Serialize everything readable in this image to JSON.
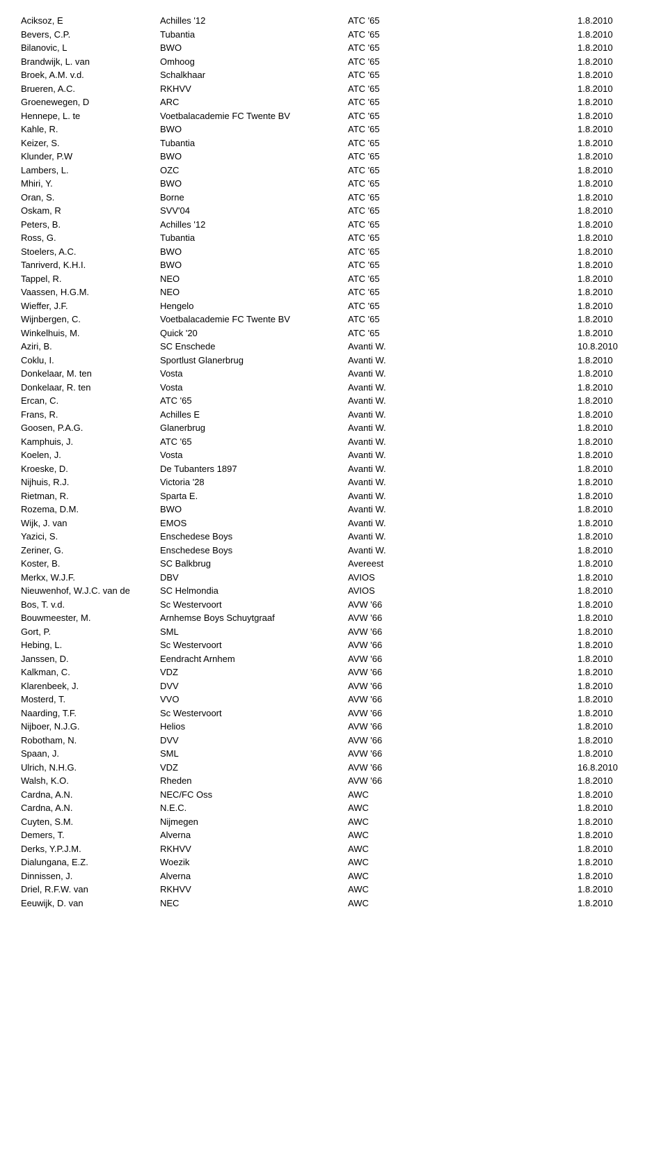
{
  "rows": [
    {
      "name": "Aciksoz, E",
      "club": "Achilles '12",
      "team": "ATC '65",
      "date": "1.8.2010"
    },
    {
      "name": "Bevers, C.P.",
      "club": "Tubantia",
      "team": "ATC '65",
      "date": "1.8.2010"
    },
    {
      "name": "Bilanovic, L",
      "club": "BWO",
      "team": "ATC '65",
      "date": "1.8.2010"
    },
    {
      "name": "Brandwijk, L. van",
      "club": "Omhoog",
      "team": "ATC '65",
      "date": "1.8.2010"
    },
    {
      "name": "Broek, A.M. v.d.",
      "club": "Schalkhaar",
      "team": "ATC '65",
      "date": "1.8.2010"
    },
    {
      "name": "Brueren, A.C.",
      "club": "RKHVV",
      "team": "ATC '65",
      "date": "1.8.2010"
    },
    {
      "name": "Groenewegen, D",
      "club": "ARC",
      "team": "ATC '65",
      "date": "1.8.2010"
    },
    {
      "name": "Hennepe, L. te",
      "club": "Voetbalacademie FC Twente BV",
      "team": "ATC '65",
      "date": "1.8.2010"
    },
    {
      "name": "Kahle, R.",
      "club": "BWO",
      "team": "ATC '65",
      "date": "1.8.2010"
    },
    {
      "name": "Keizer, S.",
      "club": "Tubantia",
      "team": "ATC '65",
      "date": "1.8.2010"
    },
    {
      "name": "Klunder, P.W",
      "club": "BWO",
      "team": "ATC '65",
      "date": "1.8.2010"
    },
    {
      "name": "Lambers, L.",
      "club": "OZC",
      "team": "ATC '65",
      "date": "1.8.2010"
    },
    {
      "name": "Mhiri, Y.",
      "club": "BWO",
      "team": "ATC '65",
      "date": "1.8.2010"
    },
    {
      "name": "Oran, S.",
      "club": "Borne",
      "team": "ATC '65",
      "date": "1.8.2010"
    },
    {
      "name": "Oskam, R",
      "club": "SVV'04",
      "team": "ATC '65",
      "date": "1.8.2010"
    },
    {
      "name": "Peters, B.",
      "club": "Achilles '12",
      "team": "ATC '65",
      "date": "1.8.2010"
    },
    {
      "name": "Ross, G.",
      "club": "Tubantia",
      "team": "ATC '65",
      "date": "1.8.2010"
    },
    {
      "name": "Stoelers, A.C.",
      "club": "BWO",
      "team": "ATC '65",
      "date": "1.8.2010"
    },
    {
      "name": "Tanriverd, K.H.I.",
      "club": "BWO",
      "team": "ATC '65",
      "date": "1.8.2010"
    },
    {
      "name": "Tappel, R.",
      "club": "NEO",
      "team": "ATC '65",
      "date": "1.8.2010"
    },
    {
      "name": "Vaassen, H.G.M.",
      "club": "NEO",
      "team": "ATC '65",
      "date": "1.8.2010"
    },
    {
      "name": "Wieffer, J.F.",
      "club": "Hengelo",
      "team": "ATC '65",
      "date": "1.8.2010"
    },
    {
      "name": "Wijnbergen, C.",
      "club": "Voetbalacademie FC Twente BV",
      "team": "ATC '65",
      "date": "1.8.2010"
    },
    {
      "name": "Winkelhuis, M.",
      "club": "Quick '20",
      "team": "ATC '65",
      "date": "1.8.2010"
    },
    {
      "name": "Aziri, B.",
      "club": "SC Enschede",
      "team": "Avanti W.",
      "date": "10.8.2010"
    },
    {
      "name": "Coklu, I.",
      "club": "Sportlust Glanerbrug",
      "team": "Avanti W.",
      "date": "1.8.2010"
    },
    {
      "name": "Donkelaar, M. ten",
      "club": "Vosta",
      "team": "Avanti W.",
      "date": "1.8.2010"
    },
    {
      "name": "Donkelaar, R. ten",
      "club": "Vosta",
      "team": "Avanti W.",
      "date": "1.8.2010"
    },
    {
      "name": "Ercan, C.",
      "club": "ATC '65",
      "team": "Avanti W.",
      "date": "1.8.2010"
    },
    {
      "name": "Frans, R.",
      "club": "Achilles E",
      "team": "Avanti W.",
      "date": "1.8.2010"
    },
    {
      "name": "Goosen, P.A.G.",
      "club": "Glanerbrug",
      "team": "Avanti W.",
      "date": "1.8.2010"
    },
    {
      "name": "Kamphuis, J.",
      "club": "ATC '65",
      "team": "Avanti W.",
      "date": "1.8.2010"
    },
    {
      "name": "Koelen, J.",
      "club": "Vosta",
      "team": "Avanti W.",
      "date": "1.8.2010"
    },
    {
      "name": "Kroeske, D.",
      "club": "De Tubanters 1897",
      "team": "Avanti W.",
      "date": "1.8.2010"
    },
    {
      "name": "Nijhuis, R.J.",
      "club": "Victoria '28",
      "team": "Avanti W.",
      "date": "1.8.2010"
    },
    {
      "name": "Rietman, R.",
      "club": "Sparta E.",
      "team": "Avanti W.",
      "date": "1.8.2010"
    },
    {
      "name": "Rozema, D.M.",
      "club": "BWO",
      "team": "Avanti W.",
      "date": "1.8.2010"
    },
    {
      "name": "Wijk, J. van",
      "club": "EMOS",
      "team": "Avanti W.",
      "date": "1.8.2010"
    },
    {
      "name": "Yazici, S.",
      "club": "Enschedese Boys",
      "team": "Avanti W.",
      "date": "1.8.2010"
    },
    {
      "name": "Zeriner, G.",
      "club": "Enschedese Boys",
      "team": "Avanti W.",
      "date": "1.8.2010"
    },
    {
      "name": "Koster, B.",
      "club": "SC Balkbrug",
      "team": "Avereest",
      "date": "1.8.2010"
    },
    {
      "name": "Merkx, W.J.F.",
      "club": "DBV",
      "team": "AVIOS",
      "date": "1.8.2010"
    },
    {
      "name": "Nieuwenhof, W.J.C. van de",
      "club": "SC Helmondia",
      "team": "AVIOS",
      "date": "1.8.2010"
    },
    {
      "name": "Bos, T. v.d.",
      "club": "Sc Westervoort",
      "team": "AVW '66",
      "date": "1.8.2010"
    },
    {
      "name": "Bouwmeester, M.",
      "club": "Arnhemse Boys Schuytgraaf",
      "team": "AVW '66",
      "date": "1.8.2010"
    },
    {
      "name": "Gort, P.",
      "club": "SML",
      "team": "AVW '66",
      "date": "1.8.2010"
    },
    {
      "name": "Hebing, L.",
      "club": "Sc Westervoort",
      "team": "AVW '66",
      "date": "1.8.2010"
    },
    {
      "name": "Janssen, D.",
      "club": "Eendracht Arnhem",
      "team": "AVW '66",
      "date": "1.8.2010"
    },
    {
      "name": "Kalkman, C.",
      "club": "VDZ",
      "team": "AVW '66",
      "date": "1.8.2010"
    },
    {
      "name": "Klarenbeek, J.",
      "club": "DVV",
      "team": "AVW '66",
      "date": "1.8.2010"
    },
    {
      "name": "Mosterd, T.",
      "club": "VVO",
      "team": "AVW '66",
      "date": "1.8.2010"
    },
    {
      "name": "Naarding, T.F.",
      "club": "Sc Westervoort",
      "team": "AVW '66",
      "date": "1.8.2010"
    },
    {
      "name": "Nijboer, N.J.G.",
      "club": "Helios",
      "team": "AVW '66",
      "date": "1.8.2010"
    },
    {
      "name": "Robotham, N.",
      "club": "DVV",
      "team": "AVW '66",
      "date": "1.8.2010"
    },
    {
      "name": "Spaan, J.",
      "club": "SML",
      "team": "AVW '66",
      "date": "1.8.2010"
    },
    {
      "name": "Ulrich, N.H.G.",
      "club": "VDZ",
      "team": "AVW '66",
      "date": "16.8.2010"
    },
    {
      "name": "Walsh, K.O.",
      "club": "Rheden",
      "team": "AVW '66",
      "date": "1.8.2010"
    },
    {
      "name": "Cardna, A.N.",
      "club": "NEC/FC Oss",
      "team": "AWC",
      "date": "1.8.2010"
    },
    {
      "name": "Cardna, A.N.",
      "club": "N.E.C.",
      "team": "AWC",
      "date": "1.8.2010"
    },
    {
      "name": "Cuyten, S.M.",
      "club": "Nijmegen",
      "team": "AWC",
      "date": "1.8.2010"
    },
    {
      "name": "Demers, T.",
      "club": "Alverna",
      "team": "AWC",
      "date": "1.8.2010"
    },
    {
      "name": "Derks, Y.P.J.M.",
      "club": "RKHVV",
      "team": "AWC",
      "date": "1.8.2010"
    },
    {
      "name": "Dialungana, E.Z.",
      "club": "Woezik",
      "team": "AWC",
      "date": "1.8.2010"
    },
    {
      "name": "Dinnissen, J.",
      "club": "Alverna",
      "team": "AWC",
      "date": "1.8.2010"
    },
    {
      "name": "Driel, R.F.W. van",
      "club": "RKHVV",
      "team": "AWC",
      "date": "1.8.2010"
    },
    {
      "name": "Eeuwijk, D. van",
      "club": "NEC",
      "team": "AWC",
      "date": "1.8.2010"
    }
  ]
}
